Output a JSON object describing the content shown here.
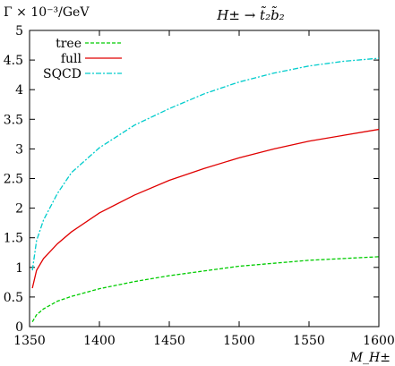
{
  "chart_data": {
    "type": "line",
    "title": "H± → t̃₂b̃₂",
    "ylabel": "Γ × 10⁻³/GeV",
    "xlabel": "M_H±",
    "xlim": [
      1350,
      1600
    ],
    "ylim": [
      0,
      5
    ],
    "xticks": [
      1350,
      1400,
      1450,
      1500,
      1550,
      1600
    ],
    "yticks": [
      0,
      0.5,
      1,
      1.5,
      2,
      2.5,
      3,
      3.5,
      4,
      4.5,
      5
    ],
    "xtick_labels": [
      "1350",
      "1400",
      "1450",
      "1500",
      "1550",
      "1600"
    ],
    "ytick_labels": [
      "0",
      "0.5",
      "1",
      "1.5",
      "2",
      "2.5",
      "3",
      "3.5",
      "4",
      "4.5",
      "5"
    ],
    "grid": false,
    "legend_position": "top-left",
    "series": [
      {
        "name": "tree",
        "color": "#00cc00",
        "dash": "dashed",
        "x": [
          1352,
          1355,
          1360,
          1370,
          1380,
          1400,
          1425,
          1450,
          1475,
          1500,
          1525,
          1550,
          1575,
          1600
        ],
        "y": [
          0.08,
          0.2,
          0.3,
          0.43,
          0.51,
          0.64,
          0.76,
          0.86,
          0.94,
          1.02,
          1.07,
          1.12,
          1.15,
          1.18
        ]
      },
      {
        "name": "full",
        "color": "#e00000",
        "dash": "solid",
        "x": [
          1352,
          1355,
          1360,
          1370,
          1380,
          1400,
          1425,
          1450,
          1475,
          1500,
          1525,
          1550,
          1575,
          1600
        ],
        "y": [
          0.65,
          0.95,
          1.15,
          1.4,
          1.6,
          1.92,
          2.22,
          2.47,
          2.67,
          2.85,
          3.0,
          3.13,
          3.23,
          3.33
        ]
      },
      {
        "name": "SQCD",
        "color": "#00cccc",
        "dash": "dash-dot",
        "x": [
          1352,
          1355,
          1360,
          1370,
          1380,
          1400,
          1425,
          1450,
          1475,
          1500,
          1525,
          1550,
          1575,
          1600
        ],
        "y": [
          0.95,
          1.45,
          1.8,
          2.25,
          2.6,
          3.02,
          3.4,
          3.68,
          3.93,
          4.13,
          4.28,
          4.4,
          4.48,
          4.53
        ]
      }
    ]
  }
}
